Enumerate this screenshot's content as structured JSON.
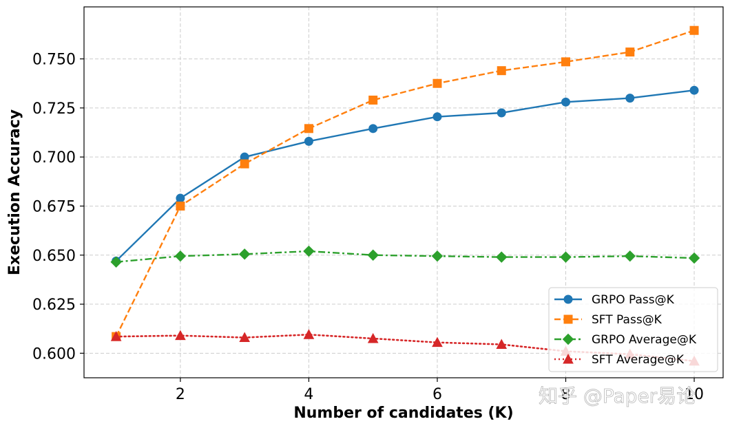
{
  "chart_data": {
    "type": "line",
    "title": "",
    "xlabel": "Number of candidates (K)",
    "ylabel": "Execution Accuracy",
    "xlim": [
      0.5,
      10.45
    ],
    "ylim": [
      0.5875,
      0.7765
    ],
    "x_ticks": [
      2,
      4,
      6,
      8,
      10
    ],
    "y_ticks": [
      0.6,
      0.625,
      0.65,
      0.675,
      0.7,
      0.725,
      0.75
    ],
    "y_tick_labels": [
      "0.600",
      "0.625",
      "0.650",
      "0.675",
      "0.700",
      "0.725",
      "0.750"
    ],
    "grid": true,
    "legend_position": "lower-right",
    "x": [
      1,
      2,
      3,
      4,
      5,
      6,
      7,
      8,
      9,
      10
    ],
    "series": [
      {
        "name": "GRPO Pass@K",
        "color": "#1f77b4",
        "marker": "circle",
        "line": "solid",
        "values": [
          0.647,
          0.679,
          0.7,
          0.708,
          0.7145,
          0.7205,
          0.7225,
          0.728,
          0.73,
          0.734
        ]
      },
      {
        "name": "SFT Pass@K",
        "color": "#ff7f0e",
        "marker": "square",
        "line": "dashed",
        "values": [
          0.6085,
          0.675,
          0.6965,
          0.7145,
          0.729,
          0.7375,
          0.744,
          0.7485,
          0.7535,
          0.7645
        ]
      },
      {
        "name": "GRPO Average@K",
        "color": "#2ca02c",
        "marker": "diamond",
        "line": "dashdot",
        "values": [
          0.6465,
          0.6495,
          0.6505,
          0.652,
          0.65,
          0.6495,
          0.649,
          0.649,
          0.6495,
          0.6485
        ]
      },
      {
        "name": "SFT Average@K",
        "color": "#d62728",
        "marker": "triangle",
        "line": "dotted",
        "values": [
          0.6085,
          0.609,
          0.608,
          0.6095,
          0.6075,
          0.6055,
          0.6045,
          0.601,
          0.5995,
          0.596
        ]
      }
    ]
  },
  "watermark": "知乎 @Paper易论"
}
